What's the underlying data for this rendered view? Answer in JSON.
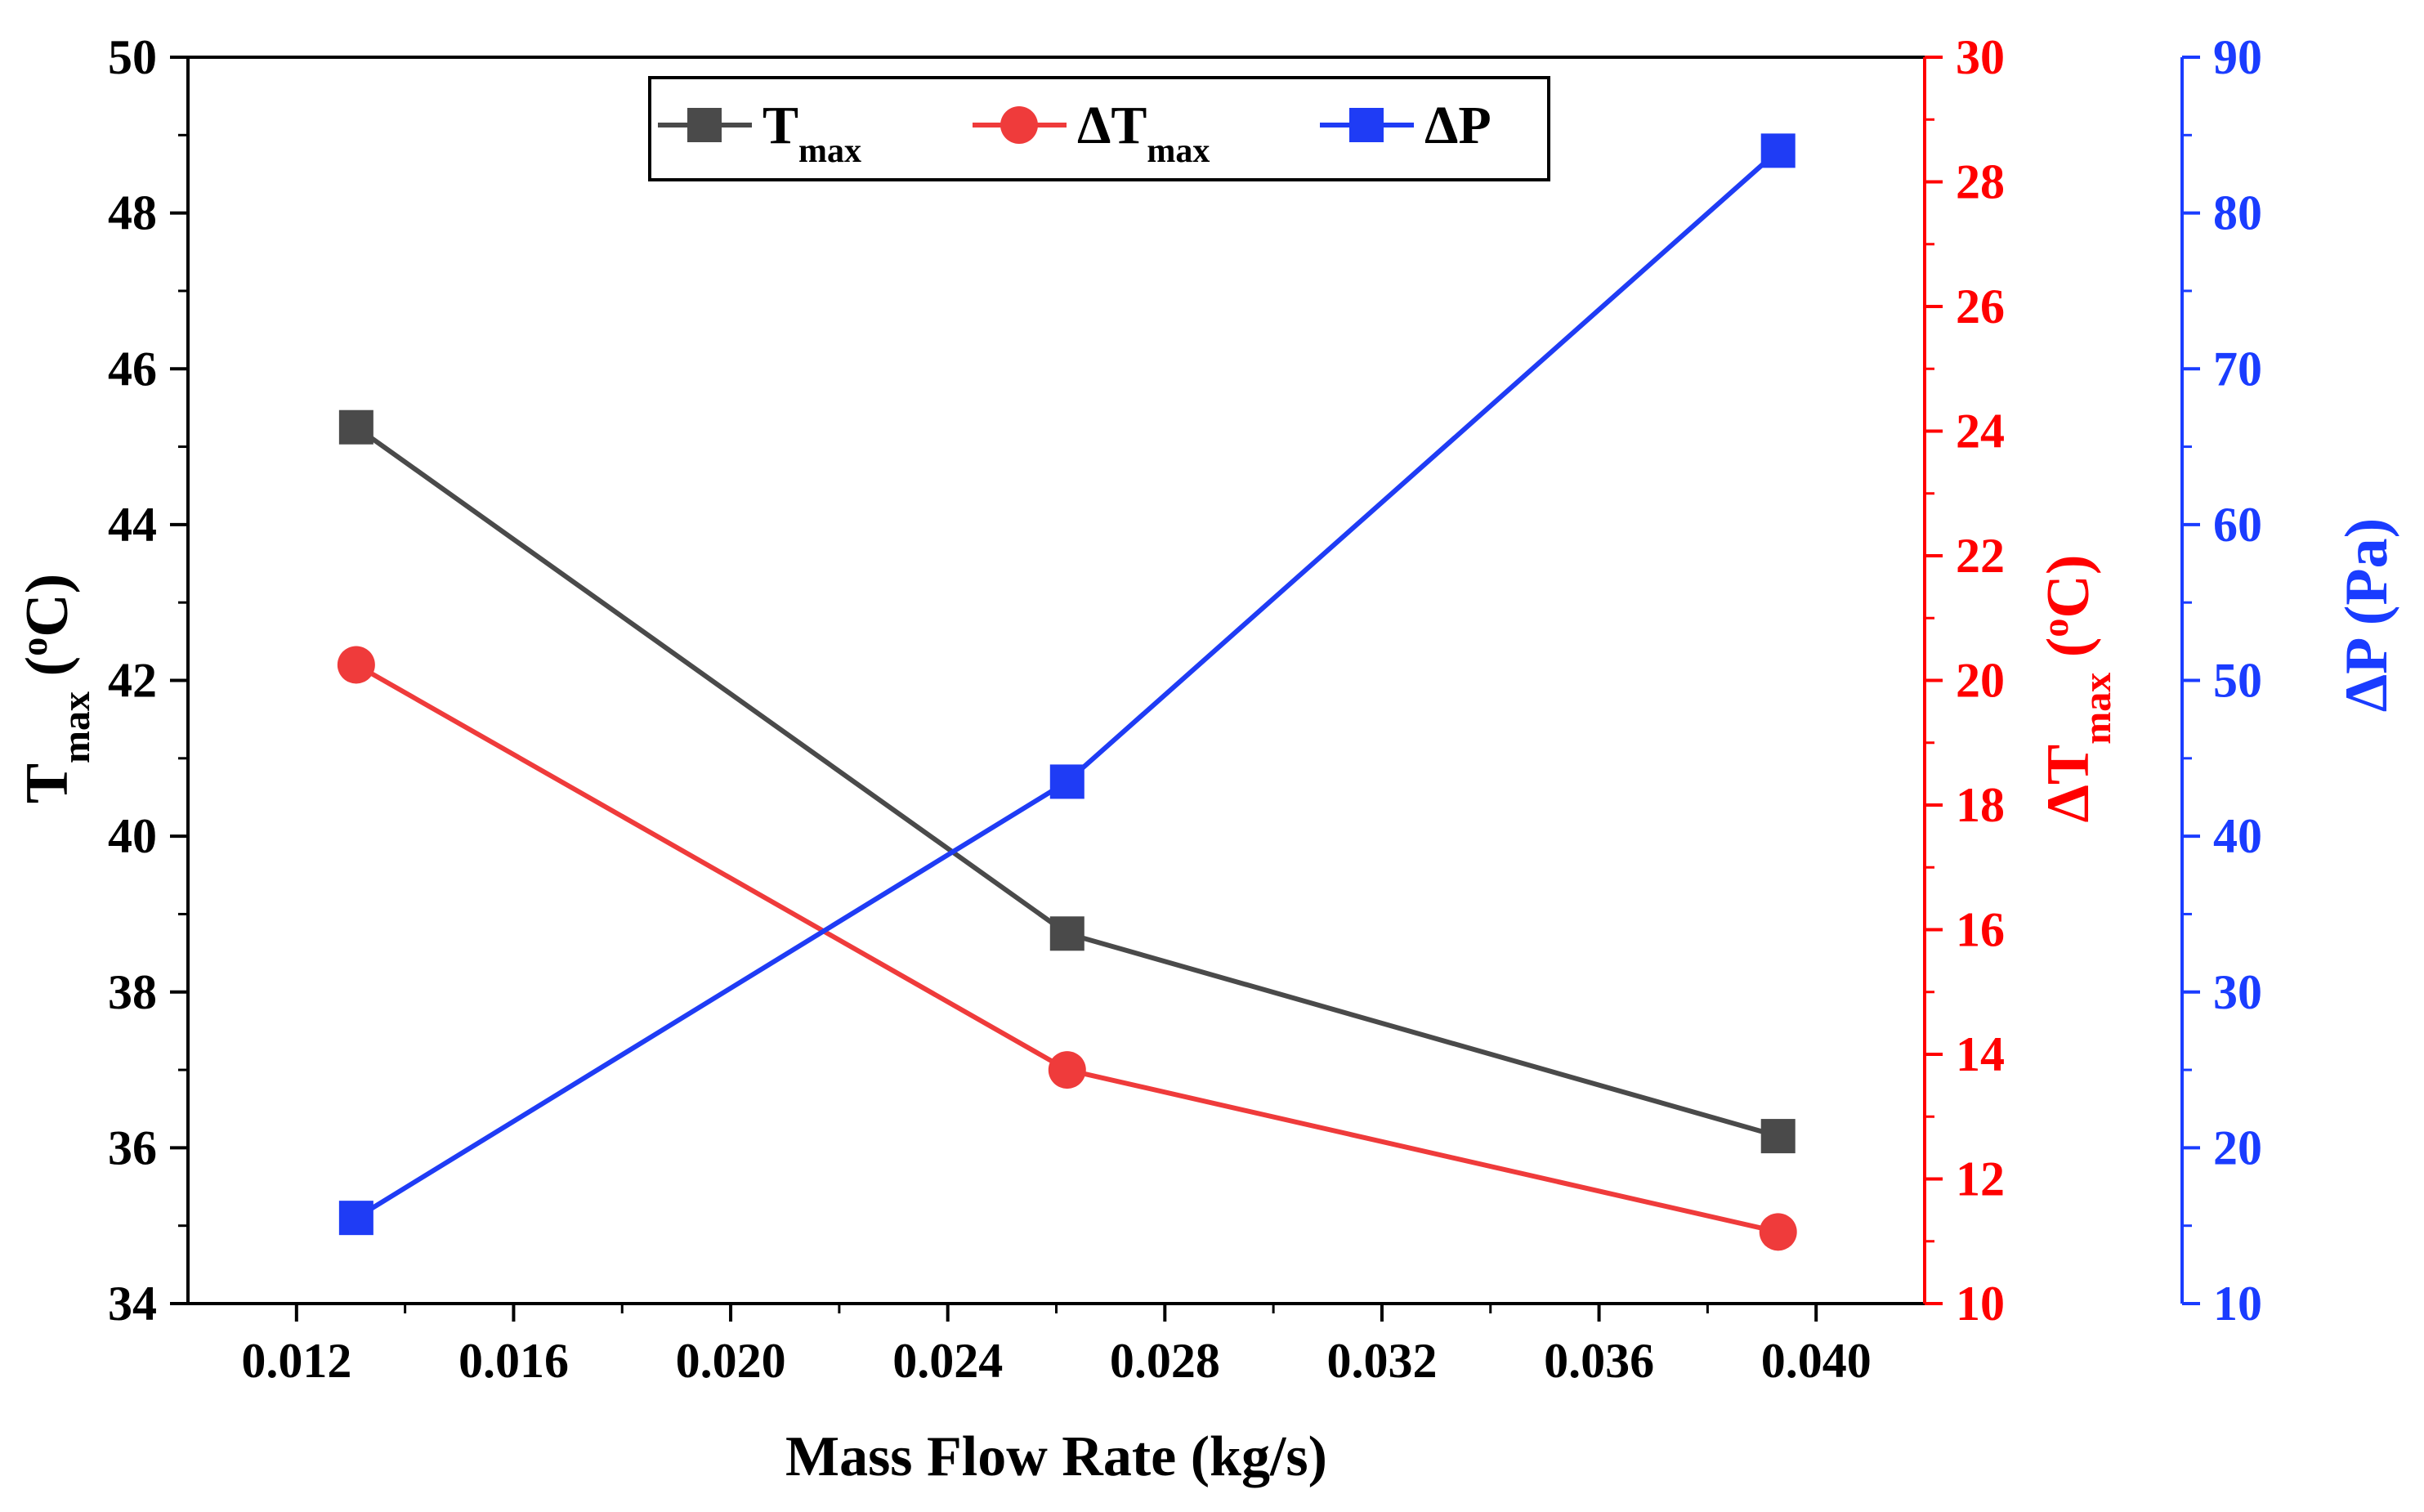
{
  "chart_data": {
    "type": "line",
    "xlabel": "Mass Flow Rate (kg/s)",
    "x": [
      0.0131,
      0.0262,
      0.0393
    ],
    "xlim": [
      0.01,
      0.042
    ],
    "xticks": [
      "0.012",
      "0.016",
      "0.020",
      "0.024",
      "0.028",
      "0.032",
      "0.036",
      "0.040"
    ],
    "axes": [
      {
        "id": "left",
        "label_main": "T",
        "label_sub": "max",
        "label_unit": " (",
        "label_sup": "o",
        "label_end": "C)",
        "ylim": [
          34,
          50
        ],
        "ticks": [
          "34",
          "36",
          "38",
          "40",
          "42",
          "44",
          "46",
          "48",
          "50"
        ],
        "color": "#000000"
      },
      {
        "id": "right1",
        "label_main": "ΔT",
        "label_sub": "max",
        "label_unit": " (",
        "label_sup": "o",
        "label_end": "C)",
        "ylim": [
          10,
          30
        ],
        "ticks": [
          "10",
          "12",
          "14",
          "16",
          "18",
          "20",
          "22",
          "24",
          "26",
          "28",
          "30"
        ],
        "color": "#ff0000"
      },
      {
        "id": "right2",
        "label": "ΔP (Pa)",
        "ylim": [
          10,
          90
        ],
        "ticks": [
          "10",
          "20",
          "30",
          "40",
          "50",
          "60",
          "70",
          "80",
          "90"
        ],
        "color": "#1a3cff"
      }
    ],
    "series": [
      {
        "name": "T",
        "name_sub": "max",
        "axis": "left",
        "marker": "square",
        "color": "#4a4a4a",
        "values": [
          45.25,
          38.75,
          36.15
        ]
      },
      {
        "name": "ΔT",
        "name_sub": "max",
        "axis": "right1",
        "marker": "circle",
        "color": "#ef3b3b",
        "values": [
          20.25,
          13.75,
          11.15
        ]
      },
      {
        "name": "ΔP",
        "name_sub": "",
        "axis": "right2",
        "marker": "square",
        "color": "#1f3cf5",
        "values": [
          15.5,
          43.5,
          84.0
        ]
      }
    ],
    "legend": "top-center"
  }
}
